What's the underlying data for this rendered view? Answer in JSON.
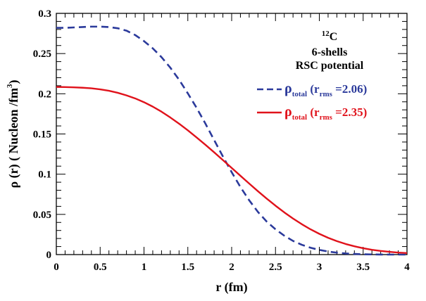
{
  "chart_data": {
    "type": "line",
    "xlabel": "r (fm)",
    "ylabel": {
      "main": "ρ (r) ( Nucleon /fm",
      "sup": "3",
      "end": ")"
    },
    "xlim": [
      0,
      4
    ],
    "ylim": [
      0,
      0.3
    ],
    "xticks": [
      {
        "value": 0,
        "label": "0"
      },
      {
        "value": 0.5,
        "label": "0.5"
      },
      {
        "value": 1,
        "label": "1"
      },
      {
        "value": 1.5,
        "label": "1.5"
      },
      {
        "value": 2,
        "label": "2"
      },
      {
        "value": 2.5,
        "label": "2.5"
      },
      {
        "value": 3,
        "label": "3"
      },
      {
        "value": 3.5,
        "label": "3.5"
      },
      {
        "value": 4,
        "label": "4"
      }
    ],
    "yticks": [
      {
        "value": 0,
        "label": "0"
      },
      {
        "value": 0.05,
        "label": "0.05"
      },
      {
        "value": 0.1,
        "label": "0.1"
      },
      {
        "value": 0.15,
        "label": "0.15"
      },
      {
        "value": 0.2,
        "label": "0.2"
      },
      {
        "value": 0.25,
        "label": "0.25"
      },
      {
        "value": 0.3,
        "label": "0.3"
      }
    ],
    "annotation": {
      "nucleus_mass": "12",
      "nucleus_symbol": "C",
      "line2": "6-shells",
      "line3": "RSC potential"
    },
    "series": [
      {
        "name": "rho_total_rms_2.06",
        "legend": {
          "symbol": "ρ",
          "sub": "total",
          "open": " (r",
          "rms_sub": "rms",
          "value": " =2.06)"
        },
        "color": "#2b3a9b",
        "style": "dashed",
        "x": [
          0,
          0.1,
          0.2,
          0.3,
          0.4,
          0.5,
          0.6,
          0.7,
          0.8,
          0.9,
          1.0,
          1.1,
          1.2,
          1.3,
          1.4,
          1.5,
          1.6,
          1.7,
          1.8,
          1.9,
          2.0,
          2.1,
          2.2,
          2.3,
          2.4,
          2.5,
          2.6,
          2.7,
          2.8,
          2.9,
          3.0,
          3.1,
          3.2,
          3.3,
          3.4,
          3.5,
          3.6,
          3.7,
          3.8,
          3.9,
          4.0
        ],
        "values": [
          0.282,
          0.282,
          0.2825,
          0.283,
          0.2835,
          0.2835,
          0.283,
          0.2815,
          0.2785,
          0.273,
          0.2655,
          0.2565,
          0.2455,
          0.2325,
          0.2175,
          0.2005,
          0.1825,
          0.163,
          0.1425,
          0.122,
          0.1025,
          0.084,
          0.0675,
          0.053,
          0.041,
          0.0315,
          0.0235,
          0.017,
          0.0122,
          0.0085,
          0.0058,
          0.0038,
          0.0024,
          0.0014,
          0.0008,
          0.0004,
          0.0002,
          0.0001,
          0.0,
          0.0,
          0.0
        ]
      },
      {
        "name": "rho_total_rms_2.35",
        "legend": {
          "symbol": "ρ",
          "sub": "total",
          "open": " (r",
          "rms_sub": "rms",
          "value": " =2.35)"
        },
        "color": "#e0121b",
        "style": "solid",
        "x": [
          0,
          0.1,
          0.2,
          0.3,
          0.4,
          0.5,
          0.6,
          0.7,
          0.8,
          0.9,
          1.0,
          1.1,
          1.2,
          1.3,
          1.4,
          1.5,
          1.6,
          1.7,
          1.8,
          1.9,
          2.0,
          2.1,
          2.2,
          2.3,
          2.4,
          2.5,
          2.6,
          2.7,
          2.8,
          2.9,
          3.0,
          3.1,
          3.2,
          3.3,
          3.4,
          3.5,
          3.6,
          3.7,
          3.8,
          3.9,
          4.0
        ],
        "values": [
          0.2085,
          0.2083,
          0.208,
          0.2075,
          0.2068,
          0.2055,
          0.2037,
          0.2012,
          0.198,
          0.1942,
          0.1895,
          0.184,
          0.1777,
          0.1705,
          0.1628,
          0.1545,
          0.1457,
          0.1366,
          0.1272,
          0.1175,
          0.1078,
          0.098,
          0.0883,
          0.0788,
          0.0696,
          0.0608,
          0.0525,
          0.0448,
          0.0378,
          0.0314,
          0.0258,
          0.0209,
          0.0167,
          0.0132,
          0.0103,
          0.0079,
          0.006,
          0.0045,
          0.0034,
          0.0025,
          0.0019
        ]
      }
    ]
  }
}
